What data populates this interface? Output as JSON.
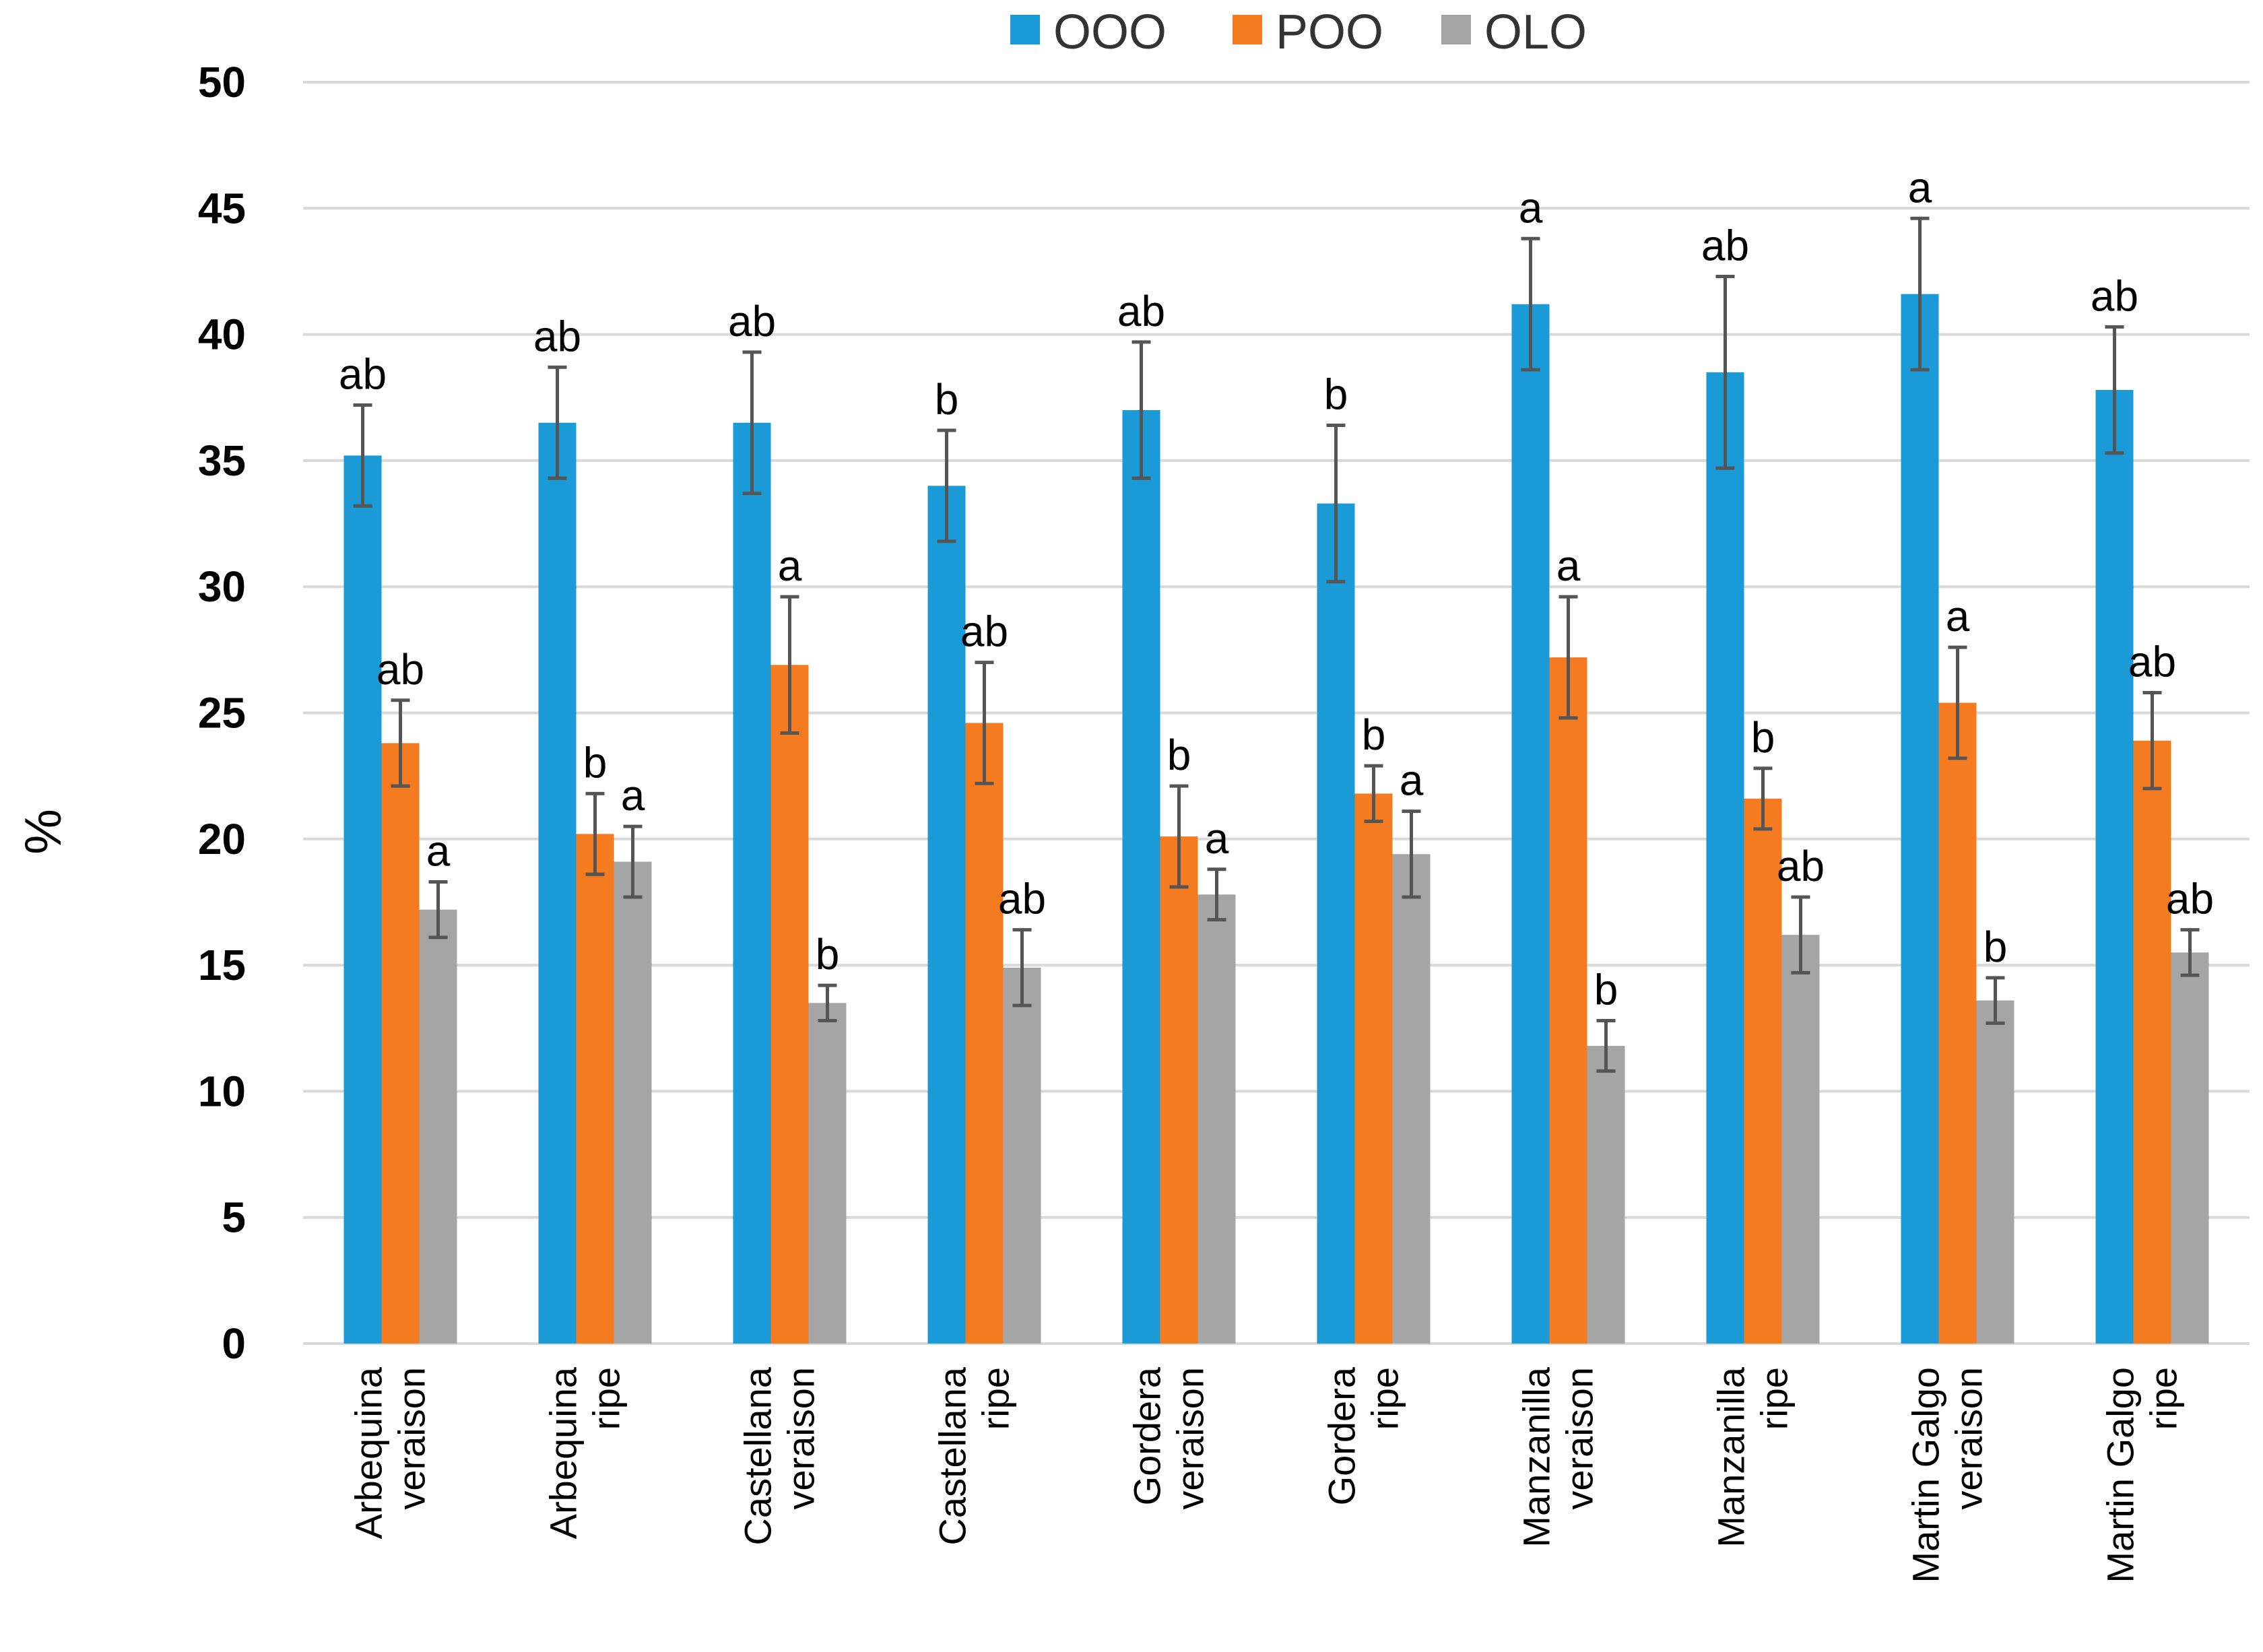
{
  "chart_data": {
    "type": "bar",
    "title": "",
    "xlabel": "",
    "ylabel": "%",
    "ylim": [
      0,
      50
    ],
    "yticks": [
      0,
      5,
      10,
      15,
      20,
      25,
      30,
      35,
      40,
      45,
      50
    ],
    "grid": true,
    "legend_position": "top-center",
    "categories": [
      [
        "Arbequina",
        "veraison"
      ],
      [
        "Arbequina",
        "ripe"
      ],
      [
        "Castellana",
        "veraison"
      ],
      [
        "Castellana",
        "ripe"
      ],
      [
        "Gordera",
        "veraison"
      ],
      [
        "Gordera",
        "ripe"
      ],
      [
        "Manzanilla",
        "veraison"
      ],
      [
        "Manzanilla",
        "ripe"
      ],
      [
        "Martin Galgo",
        "veraison"
      ],
      [
        "Martin Galgo",
        "ripe"
      ]
    ],
    "series": [
      {
        "name": "OOO",
        "color": "#1a9ad6",
        "values": [
          35.2,
          36.5,
          36.5,
          34.0,
          37.0,
          33.3,
          41.2,
          38.5,
          41.6,
          37.8
        ],
        "errors": [
          2.0,
          2.2,
          2.8,
          2.2,
          2.7,
          3.1,
          2.6,
          3.8,
          3.0,
          2.5
        ],
        "letters": [
          "ab",
          "ab",
          "ab",
          "b",
          "ab",
          "b",
          "a",
          "ab",
          "a",
          "ab"
        ]
      },
      {
        "name": "POO",
        "color": "#f47b20",
        "values": [
          23.8,
          20.2,
          26.9,
          24.6,
          20.1,
          21.8,
          27.2,
          21.6,
          25.4,
          23.9
        ],
        "errors": [
          1.7,
          1.6,
          2.7,
          2.4,
          2.0,
          1.1,
          2.4,
          1.2,
          2.2,
          1.9
        ],
        "letters": [
          "ab",
          "b",
          "a",
          "ab",
          "b",
          "b",
          "a",
          "b",
          "a",
          "ab"
        ]
      },
      {
        "name": "OLO",
        "color": "#a5a5a5",
        "values": [
          17.2,
          19.1,
          13.5,
          14.9,
          17.8,
          19.4,
          11.8,
          16.2,
          13.6,
          15.5
        ],
        "errors": [
          1.1,
          1.4,
          0.7,
          1.5,
          1.0,
          1.7,
          1.0,
          1.5,
          0.9,
          0.9
        ],
        "letters": [
          "a",
          "a",
          "b",
          "ab",
          "a",
          "a",
          "b",
          "ab",
          "b",
          "ab"
        ]
      }
    ]
  }
}
